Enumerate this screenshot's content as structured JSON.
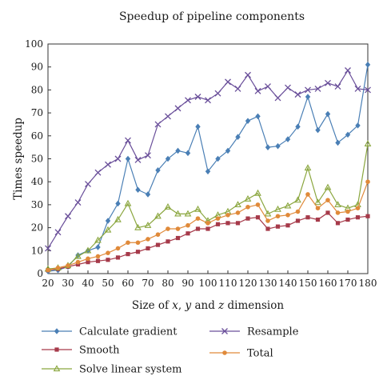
{
  "chart_data": {
    "type": "line",
    "title": "Speedup of pipeline components",
    "xlabel": "Size of x, y and z dimension",
    "xlabel_parts": [
      "Size of ",
      "x",
      ", ",
      "y",
      " and ",
      "z",
      " dimension"
    ],
    "ylabel": "Times speedup",
    "xlim": [
      20,
      180
    ],
    "ylim": [
      0,
      100
    ],
    "x_ticks": [
      "20",
      "30",
      "40",
      "50",
      "60",
      "70",
      "80",
      "90",
      "100",
      "110",
      "120",
      "130",
      "140",
      "150",
      "160",
      "170",
      "180"
    ],
    "y_ticks": [
      "0",
      "10",
      "20",
      "30",
      "40",
      "50",
      "60",
      "70",
      "80",
      "90",
      "100"
    ],
    "grid": false,
    "legend_position": "bottom",
    "x": [
      20,
      25,
      30,
      35,
      40,
      45,
      50,
      55,
      60,
      65,
      70,
      75,
      80,
      85,
      90,
      95,
      100,
      105,
      110,
      115,
      120,
      125,
      130,
      135,
      140,
      145,
      150,
      155,
      160,
      165,
      170,
      175,
      180
    ],
    "series": [
      {
        "name": "Calculate gradient",
        "color": "#4a7fb5",
        "marker": "diamond",
        "values": [
          1,
          1.5,
          3,
          8,
          10,
          11.5,
          23,
          30.5,
          50,
          36.5,
          34.5,
          45,
          50,
          53.5,
          52.5,
          64,
          44.5,
          50,
          53.5,
          59.5,
          66.5,
          68.5,
          55,
          55.5,
          58.5,
          64,
          77,
          62.5,
          69.5,
          57,
          60.5,
          64.5,
          91
        ]
      },
      {
        "name": "Smooth",
        "color": "#a63a4a",
        "marker": "square",
        "values": [
          1.5,
          2,
          3,
          4,
          5,
          5.5,
          6,
          7,
          8.5,
          9.5,
          11,
          12.5,
          14,
          15.5,
          17.5,
          19.5,
          19.5,
          21.5,
          22,
          22,
          24,
          24.5,
          19.5,
          20.5,
          21,
          23,
          24.5,
          23.5,
          26.5,
          22,
          23.5,
          24.5,
          25
        ]
      },
      {
        "name": "Solve linear system",
        "color": "#8aa63e",
        "marker": "triangle",
        "values": [
          2,
          2.5,
          3.5,
          7.5,
          10,
          14.5,
          19,
          23.5,
          30.5,
          20,
          21,
          25,
          29,
          26,
          26,
          28,
          23,
          25.5,
          27,
          30,
          32.5,
          35,
          26,
          28,
          29.5,
          32,
          46,
          31,
          37.5,
          30,
          28.5,
          30,
          56.5
        ]
      },
      {
        "name": "Resample",
        "color": "#6a4f9a",
        "marker": "x",
        "values": [
          11,
          18,
          25,
          31,
          39,
          44,
          47.5,
          50,
          58,
          49.5,
          51.5,
          65,
          68.5,
          72,
          75.5,
          77,
          75.5,
          78.5,
          83.5,
          80.5,
          86.5,
          79.5,
          81.5,
          76.5,
          81,
          78,
          80,
          80.5,
          83,
          81.5,
          88.5,
          80.5,
          80
        ]
      },
      {
        "name": "Total",
        "color": "#e08a3a",
        "marker": "circle",
        "values": [
          1.5,
          2.5,
          3.5,
          5,
          6.5,
          7.5,
          9,
          11,
          13.5,
          13.5,
          15,
          17,
          19.5,
          19.5,
          21,
          24,
          22,
          24,
          25.5,
          26.5,
          29,
          30,
          23,
          25,
          25.5,
          27,
          34.5,
          28.5,
          32,
          26.5,
          27,
          28.5,
          40
        ]
      }
    ]
  }
}
